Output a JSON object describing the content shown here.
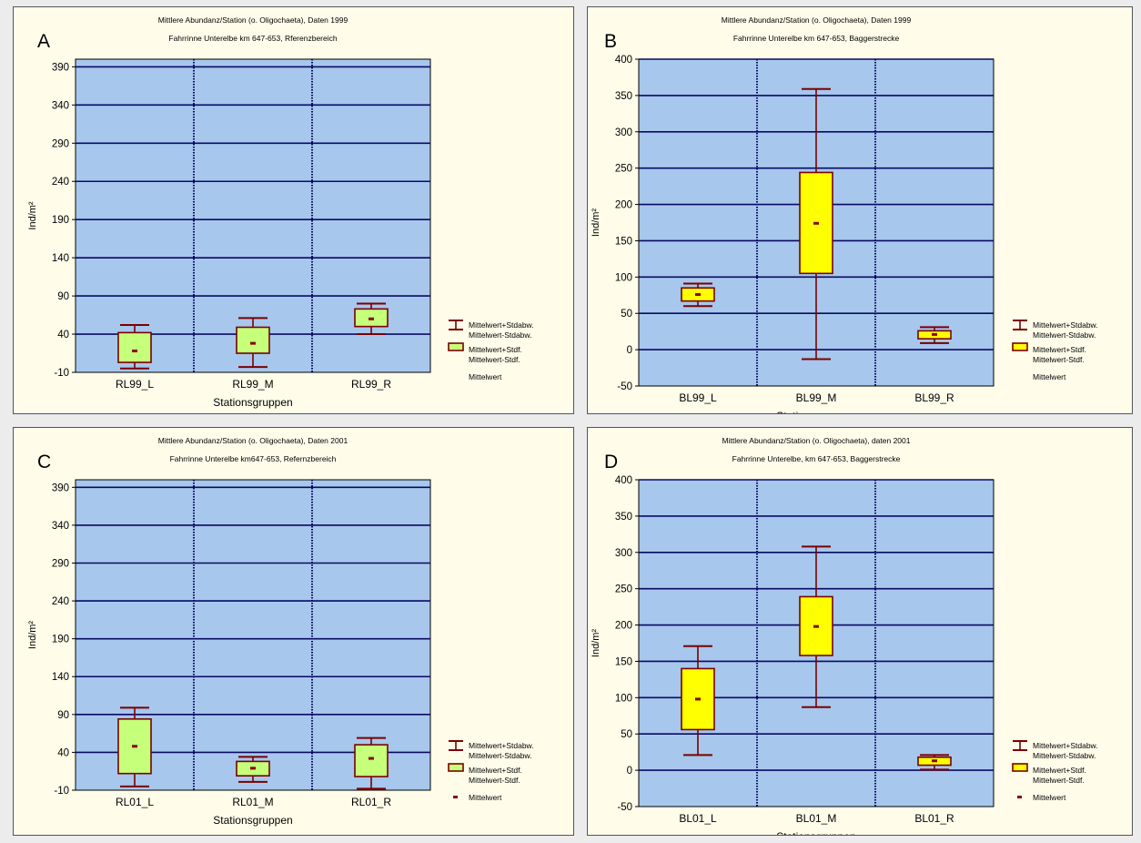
{
  "colors": {
    "panel_background": "#fffdea",
    "plot_background": "#a7c7ec",
    "grid_line": "#0a0a64",
    "whisker": "#7a0000",
    "box_green": "#c6ff7a",
    "box_yellow": "#ffff00",
    "mean_marker": "#8b0000"
  },
  "legend_labels": {
    "std_plus": "Mittelwert+Stdabw.",
    "std_minus": "Mittelwert-Stdabw.",
    "stdf_plus": "Mittelwert+Stdf.",
    "stdf_minus": "Mittelwert-Stdf.",
    "mean": "Mittelwert"
  },
  "chart_data": [
    {
      "panel": "A",
      "type": "box",
      "title_line1": "Mittlere Abundanz/Station (o. Oligochaeta), Daten 1999",
      "title_line2": "Fahrrinne Unterelbe km 647-653, Rferenzbereich",
      "xlabel": "Stationsgruppen",
      "ylabel": "Ind/m²",
      "ylim": [
        -10,
        400
      ],
      "yticks": [
        -10,
        40,
        90,
        140,
        190,
        240,
        290,
        340,
        390
      ],
      "legend_style": "green",
      "legend_mean_marker": false,
      "box_color": "#c6ff7a",
      "categories": [
        "RL99_L",
        "RL99_M",
        "RL99_R"
      ],
      "series": [
        {
          "mean": 18,
          "box_low": 3,
          "box_high": 42,
          "whisker_low": -5,
          "whisker_high": 52
        },
        {
          "mean": 28,
          "box_low": 15,
          "box_high": 49,
          "whisker_low": -3,
          "whisker_high": 61
        },
        {
          "mean": 60,
          "box_low": 50,
          "box_high": 73,
          "whisker_low": 40,
          "whisker_high": 80
        }
      ]
    },
    {
      "panel": "B",
      "type": "box",
      "title_line1": "Mittlere Abundanz/Station (o. Oligochaeta), Daten 1999",
      "title_line2": "Fahrrinne Unterelbe km 647-653, Baggerstrecke",
      "xlabel": "Stationsgruppen",
      "ylabel": "Ind/m²",
      "ylim": [
        -50,
        400
      ],
      "yticks": [
        -50,
        0,
        50,
        100,
        150,
        200,
        250,
        300,
        350,
        400
      ],
      "legend_style": "yellow",
      "legend_mean_marker": false,
      "box_color": "#ffff00",
      "categories": [
        "BL99_L",
        "BL99_M",
        "BL99_R"
      ],
      "series": [
        {
          "mean": 76,
          "box_low": 67,
          "box_high": 85,
          "whisker_low": 60,
          "whisker_high": 91
        },
        {
          "mean": 174,
          "box_low": 105,
          "box_high": 244,
          "whisker_low": -13,
          "whisker_high": 359
        },
        {
          "mean": 21,
          "box_low": 15,
          "box_high": 26,
          "whisker_low": 9,
          "whisker_high": 31
        }
      ]
    },
    {
      "panel": "C",
      "type": "box",
      "title_line1": "Mittlere Abundanz/Station (o. Oligochaeta), Daten 2001",
      "title_line2": "Fahrrinne Unterelbe km647-653, Refernzbereich",
      "xlabel": "Stationsgruppen",
      "ylabel": "Ind/m²",
      "ylim": [
        -10,
        400
      ],
      "yticks": [
        -10,
        40,
        90,
        140,
        190,
        240,
        290,
        340,
        390
      ],
      "legend_style": "green",
      "legend_mean_marker": true,
      "box_color": "#c6ff7a",
      "categories": [
        "RL01_L",
        "RL01_M",
        "RL01_R"
      ],
      "series": [
        {
          "mean": 48,
          "box_low": 12,
          "box_high": 84,
          "whisker_low": -5,
          "whisker_high": 99
        },
        {
          "mean": 19,
          "box_low": 9,
          "box_high": 28,
          "whisker_low": 1,
          "whisker_high": 34
        },
        {
          "mean": 32,
          "box_low": 8,
          "box_high": 50,
          "whisker_low": -8,
          "whisker_high": 59
        }
      ]
    },
    {
      "panel": "D",
      "type": "box",
      "title_line1": "Mittlere Abundanz/Station (o. Oligochaeta), daten 2001",
      "title_line2": "Fahrrinne Unterelbe, km 647-653, Baggerstrecke",
      "xlabel": "Stationsgruppen",
      "ylabel": "Ind/m²",
      "ylim": [
        -50,
        400
      ],
      "yticks": [
        -50,
        0,
        50,
        100,
        150,
        200,
        250,
        300,
        350,
        400
      ],
      "legend_style": "yellow",
      "legend_mean_marker": true,
      "box_color": "#ffff00",
      "categories": [
        "BL01_L",
        "BL01_M",
        "BL01_R"
      ],
      "series": [
        {
          "mean": 98,
          "box_low": 56,
          "box_high": 140,
          "whisker_low": 21,
          "whisker_high": 171
        },
        {
          "mean": 198,
          "box_low": 158,
          "box_high": 239,
          "whisker_low": 87,
          "whisker_high": 308
        },
        {
          "mean": 13,
          "box_low": 7,
          "box_high": 18,
          "whisker_low": 1,
          "whisker_high": 21
        }
      ]
    }
  ]
}
